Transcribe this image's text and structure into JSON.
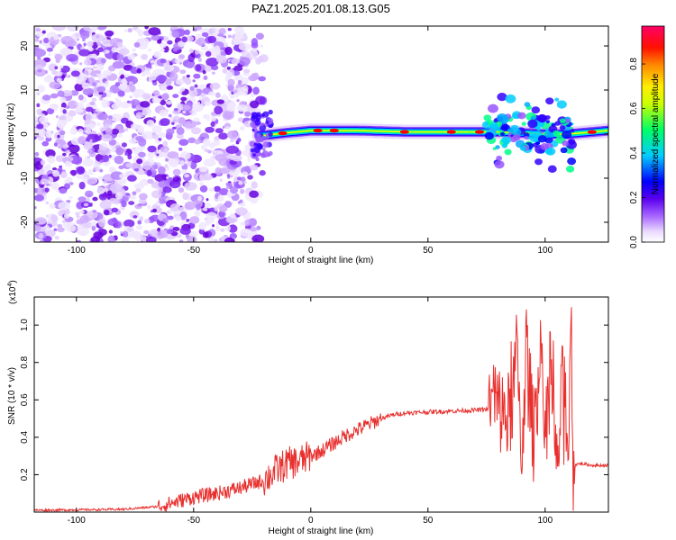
{
  "title": "PAZ1.2025.201.08.13.G05",
  "chart_data": [
    {
      "type": "heatmap",
      "xlabel": "Height of straight line (km)",
      "ylabel": "Frequency (Hz)",
      "xlim": [
        -118,
        127
      ],
      "ylim": [
        -24.5,
        24.5
      ],
      "xticks": [
        -100,
        -50,
        0,
        50,
        100
      ],
      "yticks": [
        -20,
        -10,
        0,
        10,
        20
      ],
      "colorbar": {
        "label": "Normalized spectral amplitude",
        "range": [
          0,
          0.97
        ],
        "ticks": [
          "0.0",
          "0.2",
          "0.4",
          "0.6",
          "0.8"
        ],
        "tick_values": [
          0,
          0.2,
          0.4,
          0.6,
          0.8
        ],
        "colors": [
          "#ffffff",
          "#cc99ff",
          "#6600ee",
          "#0000ff",
          "#00ccff",
          "#00ff66",
          "#ffff00",
          "#ff8800",
          "#ff0000",
          "#ff0066"
        ]
      },
      "features": {
        "noise_region_km": [
          -118,
          -20
        ],
        "carrier_start_km": -22,
        "carrier_freq_hz": [
          [
            -20,
            -0.3
          ],
          [
            -10,
            0.3
          ],
          [
            0,
            0.8
          ],
          [
            20,
            0.8
          ],
          [
            40,
            0.5
          ],
          [
            60,
            0.5
          ],
          [
            80,
            0.5
          ],
          [
            100,
            0
          ],
          [
            110,
            0
          ],
          [
            127,
            0.8
          ]
        ],
        "disturbed_region_km": [
          75,
          112
        ]
      }
    },
    {
      "type": "line",
      "xlabel": "Height of straight line (km)",
      "ylabel": "SNR (10 * v/v)",
      "multiplier": "(x10^4)",
      "xlim": [
        -118,
        127
      ],
      "ylim": [
        0,
        1.15
      ],
      "xticks": [
        -100,
        -50,
        0,
        50,
        100
      ],
      "yticks": [
        0.2,
        0.4,
        0.6,
        0.8,
        1.0
      ],
      "ytick_labels": [
        "0.2",
        "0.4",
        "0.6",
        "0.8",
        "1.0"
      ],
      "color": "#e8302e",
      "x": [
        -118,
        -100,
        -80,
        -65,
        -50,
        -40,
        -30,
        -20,
        -15,
        -10,
        -5,
        0,
        5,
        10,
        15,
        20,
        25,
        30,
        35,
        40,
        50,
        60,
        70,
        76,
        78,
        80,
        85,
        88,
        90,
        92,
        95,
        98,
        100,
        102,
        105,
        108,
        110,
        111,
        112,
        115,
        120,
        127
      ],
      "y": [
        0.01,
        0.012,
        0.015,
        0.03,
        0.08,
        0.1,
        0.13,
        0.17,
        0.22,
        0.26,
        0.27,
        0.3,
        0.33,
        0.37,
        0.41,
        0.44,
        0.47,
        0.5,
        0.52,
        0.53,
        0.535,
        0.54,
        0.545,
        0.55,
        0.62,
        0.55,
        0.5,
        0.85,
        0.3,
        0.9,
        0.4,
        0.95,
        0.3,
        0.85,
        0.2,
        0.8,
        0.3,
        1.14,
        0.25,
        0.26,
        0.25,
        0.25
      ]
    }
  ]
}
